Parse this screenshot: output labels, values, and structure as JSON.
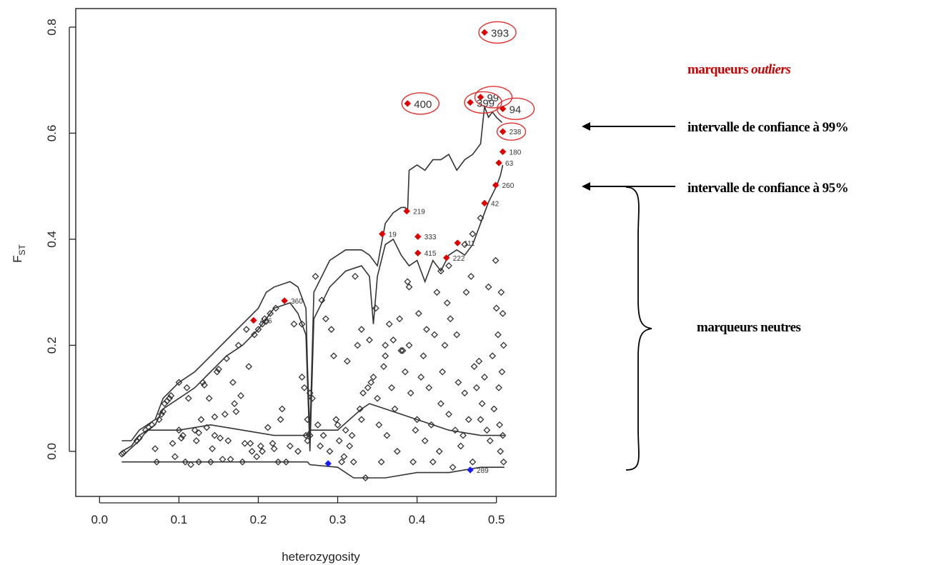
{
  "chart_data": {
    "type": "scatter",
    "title": "",
    "xlabel": "heterozygosity",
    "ylabel_main": "F",
    "ylabel_sub": "ST",
    "xlim": [
      -0.03,
      0.575
    ],
    "ylim": [
      -0.085,
      0.835
    ],
    "xticks": [
      0.0,
      0.1,
      0.2,
      0.3,
      0.4,
      0.5
    ],
    "xtick_labels": [
      "0.0",
      "0.1",
      "0.2",
      "0.3",
      "0.4",
      "0.5"
    ],
    "yticks": [
      0.0,
      0.2,
      0.4,
      0.6,
      0.8
    ],
    "ytick_labels": [
      "0.0",
      "0.2",
      "0.4",
      "0.6",
      "0.8"
    ],
    "grid": false,
    "colors": {
      "outlier": "#e00000",
      "balancing": "#1a1aff",
      "neutral": "#333333",
      "ellipse": "#e03030",
      "annot_red": "#cc0000",
      "annot_black": "#000000"
    },
    "annotations": {
      "outliers_prefix": "marqueurs ",
      "outliers_em": "outliers",
      "ci99": "intervalle de confiance à 99%",
      "ci95": "intervalle de confiance à 95%",
      "neutral": "marqueurs neutres"
    },
    "outliers": [
      {
        "label": "393",
        "x": 0.485,
        "y": 0.79,
        "big": true,
        "circled": true
      },
      {
        "label": "400",
        "x": 0.388,
        "y": 0.656,
        "big": true,
        "circled": true
      },
      {
        "label": "99",
        "x": 0.48,
        "y": 0.668,
        "big": true,
        "circled": true
      },
      {
        "label": "399",
        "x": 0.467,
        "y": 0.658,
        "big": true,
        "circled": true
      },
      {
        "label": "94",
        "x": 0.508,
        "y": 0.646,
        "big": true,
        "circled": true
      },
      {
        "label": "238",
        "x": 0.508,
        "y": 0.603,
        "big": false,
        "circled": true
      },
      {
        "label": "180",
        "x": 0.508,
        "y": 0.565,
        "big": false,
        "circled": false
      },
      {
        "label": "63",
        "x": 0.503,
        "y": 0.544,
        "big": false,
        "circled": false
      },
      {
        "label": "260",
        "x": 0.499,
        "y": 0.502,
        "big": false,
        "circled": false
      },
      {
        "label": "42",
        "x": 0.485,
        "y": 0.468,
        "big": false,
        "circled": false
      },
      {
        "label": "219",
        "x": 0.387,
        "y": 0.453,
        "big": false,
        "circled": false
      },
      {
        "label": "19",
        "x": 0.356,
        "y": 0.41,
        "big": false,
        "circled": false
      },
      {
        "label": "333",
        "x": 0.401,
        "y": 0.405,
        "big": false,
        "circled": false
      },
      {
        "label": "415",
        "x": 0.401,
        "y": 0.374,
        "big": false,
        "circled": false
      },
      {
        "label": "111",
        "x": 0.451,
        "y": 0.393,
        "big": false,
        "circled": false
      },
      {
        "label": "222",
        "x": 0.437,
        "y": 0.365,
        "big": false,
        "circled": false
      },
      {
        "label": "360",
        "x": 0.233,
        "y": 0.284,
        "big": false,
        "circled": false
      },
      {
        "label": "406",
        "x": 0.194,
        "y": 0.247,
        "big": false,
        "circled": false
      }
    ],
    "balancing": [
      {
        "label": "",
        "x": 0.288,
        "y": -0.023
      },
      {
        "label": "289",
        "x": 0.467,
        "y": -0.035
      }
    ],
    "neutral": [
      [
        0.028,
        -0.005
      ],
      [
        0.03,
        -0.003
      ],
      [
        0.047,
        0.02
      ],
      [
        0.05,
        0.025
      ],
      [
        0.058,
        0.04
      ],
      [
        0.062,
        0.045
      ],
      [
        0.066,
        0.05
      ],
      [
        0.07,
        0.005
      ],
      [
        0.072,
        -0.02
      ],
      [
        0.075,
        0.06
      ],
      [
        0.078,
        0.07
      ],
      [
        0.08,
        0.075
      ],
      [
        0.082,
        0.09
      ],
      [
        0.085,
        0.095
      ],
      [
        0.088,
        0.1
      ],
      [
        0.09,
        0.105
      ],
      [
        0.092,
        0.015
      ],
      [
        0.095,
        -0.01
      ],
      [
        0.1,
        0.13
      ],
      [
        0.103,
        0.025
      ],
      [
        0.105,
        0.03
      ],
      [
        0.108,
        -0.02
      ],
      [
        0.11,
        0.12
      ],
      [
        0.112,
        0.1
      ],
      [
        0.115,
        -0.025
      ],
      [
        0.12,
        0.04
      ],
      [
        0.122,
        0.02
      ],
      [
        0.125,
        -0.02
      ],
      [
        0.128,
        0.06
      ],
      [
        0.13,
        0.13
      ],
      [
        0.132,
        0.125
      ],
      [
        0.135,
        0.045
      ],
      [
        0.138,
        0.1
      ],
      [
        0.14,
        -0.02
      ],
      [
        0.142,
        0.005
      ],
      [
        0.145,
        0.065
      ],
      [
        0.148,
        0.15
      ],
      [
        0.15,
        0.155
      ],
      [
        0.152,
        0.025
      ],
      [
        0.155,
        -0.015
      ],
      [
        0.158,
        0.07
      ],
      [
        0.16,
        0.175
      ],
      [
        0.162,
        0.02
      ],
      [
        0.165,
        -0.015
      ],
      [
        0.168,
        0.13
      ],
      [
        0.17,
        0.09
      ],
      [
        0.172,
        0.075
      ],
      [
        0.175,
        0.2
      ],
      [
        0.178,
        0.105
      ],
      [
        0.18,
        -0.02
      ],
      [
        0.183,
        0.015
      ],
      [
        0.185,
        0.23
      ],
      [
        0.188,
        0.16
      ],
      [
        0.19,
        0.015
      ],
      [
        0.192,
        0.0
      ],
      [
        0.195,
        0.22
      ],
      [
        0.198,
        -0.01
      ],
      [
        0.2,
        0.23
      ],
      [
        0.203,
        0.01
      ],
      [
        0.205,
        0.24
      ],
      [
        0.208,
        0.25
      ],
      [
        0.21,
        0.245
      ],
      [
        0.212,
        0.045
      ],
      [
        0.215,
        0.26
      ],
      [
        0.218,
        0.015
      ],
      [
        0.22,
        0.005
      ],
      [
        0.222,
        0.27
      ],
      [
        0.225,
        -0.02
      ],
      [
        0.228,
        0.06
      ],
      [
        0.23,
        0.08
      ],
      [
        0.235,
        -0.02
      ],
      [
        0.24,
        0.01
      ],
      [
        0.245,
        0.24
      ],
      [
        0.25,
        0.0
      ],
      [
        0.255,
        0.14
      ],
      [
        0.258,
        0.12
      ],
      [
        0.26,
        0.03
      ],
      [
        0.262,
        0.02
      ],
      [
        0.265,
        0.03
      ],
      [
        0.268,
        0.1
      ],
      [
        0.272,
        0.33
      ],
      [
        0.275,
        0.05
      ],
      [
        0.278,
        0.01
      ],
      [
        0.28,
        0.285
      ],
      [
        0.282,
        0.03
      ],
      [
        0.285,
        0.25
      ],
      [
        0.29,
        0.0
      ],
      [
        0.292,
        0.23
      ],
      [
        0.295,
        0.18
      ],
      [
        0.298,
        0.06
      ],
      [
        0.3,
        0.05
      ],
      [
        0.302,
        0.02
      ],
      [
        0.305,
        -0.02
      ],
      [
        0.308,
        -0.01
      ],
      [
        0.31,
        0.04
      ],
      [
        0.312,
        0.17
      ],
      [
        0.315,
        0.01
      ],
      [
        0.318,
        0.03
      ],
      [
        0.32,
        -0.02
      ],
      [
        0.322,
        0.33
      ],
      [
        0.325,
        0.2
      ],
      [
        0.328,
        0.08
      ],
      [
        0.33,
        0.06
      ],
      [
        0.332,
        0.11
      ],
      [
        0.335,
        -0.05
      ],
      [
        0.338,
        0.12
      ],
      [
        0.34,
        0.21
      ],
      [
        0.342,
        0.13
      ],
      [
        0.345,
        0.14
      ],
      [
        0.348,
        0.27
      ],
      [
        0.35,
        0.1
      ],
      [
        0.352,
        0.05
      ],
      [
        0.355,
        -0.02
      ],
      [
        0.358,
        0.16
      ],
      [
        0.36,
        0.18
      ],
      [
        0.362,
        0.03
      ],
      [
        0.365,
        0.24
      ],
      [
        0.368,
        0.12
      ],
      [
        0.37,
        0.21
      ],
      [
        0.372,
        0.08
      ],
      [
        0.375,
        0.0
      ],
      [
        0.378,
        0.25
      ],
      [
        0.38,
        0.19
      ],
      [
        0.382,
        0.19
      ],
      [
        0.385,
        0.15
      ],
      [
        0.388,
        0.32
      ],
      [
        0.39,
        0.2
      ],
      [
        0.392,
        0.11
      ],
      [
        0.395,
        -0.02
      ],
      [
        0.398,
        0.04
      ],
      [
        0.4,
        0.06
      ],
      [
        0.402,
        0.26
      ],
      [
        0.405,
        0.14
      ],
      [
        0.408,
        0.18
      ],
      [
        0.41,
        0.02
      ],
      [
        0.412,
        0.23
      ],
      [
        0.415,
        0.12
      ],
      [
        0.418,
        0.05
      ],
      [
        0.42,
        -0.02
      ],
      [
        0.422,
        0.22
      ],
      [
        0.425,
        0.3
      ],
      [
        0.428,
        0.0
      ],
      [
        0.43,
        0.09
      ],
      [
        0.432,
        0.15
      ],
      [
        0.435,
        0.2
      ],
      [
        0.438,
        0.28
      ],
      [
        0.44,
        0.07
      ],
      [
        0.442,
        0.25
      ],
      [
        0.445,
        -0.03
      ],
      [
        0.448,
        0.04
      ],
      [
        0.45,
        0.22
      ],
      [
        0.452,
        0.13
      ],
      [
        0.455,
        0.01
      ],
      [
        0.458,
        0.03
      ],
      [
        0.46,
        0.11
      ],
      [
        0.462,
        0.3
      ],
      [
        0.465,
        0.06
      ],
      [
        0.468,
        0.33
      ],
      [
        0.47,
        -0.02
      ],
      [
        0.472,
        0.16
      ],
      [
        0.475,
        0.12
      ],
      [
        0.478,
        0.17
      ],
      [
        0.48,
        0.06
      ],
      [
        0.482,
        0.09
      ],
      [
        0.485,
        0.14
      ],
      [
        0.488,
        0.04
      ],
      [
        0.49,
        0.31
      ],
      [
        0.492,
        0.02
      ],
      [
        0.495,
        0.18
      ],
      [
        0.497,
        0.08
      ],
      [
        0.499,
        0.36
      ],
      [
        0.5,
        0.27
      ],
      [
        0.502,
        0.22
      ],
      [
        0.503,
        0.12
      ],
      [
        0.504,
        0.05
      ],
      [
        0.505,
        0.0
      ],
      [
        0.506,
        0.3
      ],
      [
        0.507,
        0.15
      ],
      [
        0.508,
        0.26
      ],
      [
        0.508,
        0.03
      ],
      [
        0.509,
        0.2
      ],
      [
        0.509,
        -0.02
      ],
      [
        0.48,
        0.44
      ],
      [
        0.47,
        0.41
      ],
      [
        0.46,
        0.39
      ],
      [
        0.44,
        0.35
      ],
      [
        0.43,
        0.34
      ],
      [
        0.39,
        0.31
      ],
      [
        0.36,
        0.2
      ],
      [
        0.33,
        0.23
      ],
      [
        0.265,
        0.11
      ],
      [
        0.262,
        0.06
      ],
      [
        0.255,
        0.24
      ],
      [
        0.205,
        0.0
      ],
      [
        0.145,
        0.03
      ],
      [
        0.125,
        0.035
      ],
      [
        0.1,
        0.04
      ]
    ],
    "ci99_upper": [
      [
        0.028,
        0.02
      ],
      [
        0.04,
        0.02
      ],
      [
        0.05,
        0.04
      ],
      [
        0.07,
        0.06
      ],
      [
        0.08,
        0.1
      ],
      [
        0.1,
        0.13
      ],
      [
        0.12,
        0.15
      ],
      [
        0.14,
        0.18
      ],
      [
        0.16,
        0.21
      ],
      [
        0.18,
        0.24
      ],
      [
        0.2,
        0.27
      ],
      [
        0.21,
        0.3
      ],
      [
        0.22,
        0.31
      ],
      [
        0.24,
        0.32
      ],
      [
        0.25,
        0.31
      ],
      [
        0.26,
        0.27
      ],
      [
        0.262,
        0.16
      ],
      [
        0.265,
        0.03
      ],
      [
        0.27,
        0.3
      ],
      [
        0.29,
        0.36
      ],
      [
        0.31,
        0.38
      ],
      [
        0.33,
        0.38
      ],
      [
        0.34,
        0.37
      ],
      [
        0.35,
        0.35
      ],
      [
        0.36,
        0.43
      ],
      [
        0.37,
        0.45
      ],
      [
        0.38,
        0.46
      ],
      [
        0.385,
        0.46
      ],
      [
        0.388,
        0.45
      ],
      [
        0.39,
        0.53
      ],
      [
        0.4,
        0.54
      ],
      [
        0.41,
        0.53
      ],
      [
        0.42,
        0.55
      ],
      [
        0.43,
        0.55
      ],
      [
        0.44,
        0.56
      ],
      [
        0.45,
        0.53
      ],
      [
        0.46,
        0.55
      ],
      [
        0.47,
        0.56
      ],
      [
        0.48,
        0.58
      ],
      [
        0.485,
        0.65
      ],
      [
        0.49,
        0.63
      ],
      [
        0.495,
        0.64
      ],
      [
        0.5,
        0.63
      ],
      [
        0.507,
        0.62
      ]
    ],
    "ci95_upper": [
      [
        0.028,
        0.0
      ],
      [
        0.04,
        0.01
      ],
      [
        0.05,
        0.03
      ],
      [
        0.07,
        0.05
      ],
      [
        0.08,
        0.08
      ],
      [
        0.1,
        0.1
      ],
      [
        0.12,
        0.12
      ],
      [
        0.14,
        0.15
      ],
      [
        0.16,
        0.18
      ],
      [
        0.18,
        0.2
      ],
      [
        0.2,
        0.23
      ],
      [
        0.22,
        0.27
      ],
      [
        0.24,
        0.28
      ],
      [
        0.25,
        0.26
      ],
      [
        0.26,
        0.22
      ],
      [
        0.262,
        0.13
      ],
      [
        0.265,
        0.0
      ],
      [
        0.27,
        0.25
      ],
      [
        0.29,
        0.31
      ],
      [
        0.31,
        0.34
      ],
      [
        0.33,
        0.35
      ],
      [
        0.34,
        0.33
      ],
      [
        0.345,
        0.24
      ],
      [
        0.35,
        0.33
      ],
      [
        0.36,
        0.39
      ],
      [
        0.37,
        0.4
      ],
      [
        0.38,
        0.37
      ],
      [
        0.39,
        0.35
      ],
      [
        0.4,
        0.36
      ],
      [
        0.41,
        0.32
      ],
      [
        0.42,
        0.36
      ],
      [
        0.43,
        0.34
      ],
      [
        0.44,
        0.37
      ],
      [
        0.45,
        0.38
      ],
      [
        0.46,
        0.37
      ],
      [
        0.47,
        0.39
      ],
      [
        0.48,
        0.43
      ],
      [
        0.49,
        0.47
      ],
      [
        0.5,
        0.5
      ],
      [
        0.505,
        0.52
      ],
      [
        0.508,
        0.54
      ]
    ],
    "ci_lower_upperband": [
      [
        0.028,
        -0.01
      ],
      [
        0.05,
        0.02
      ],
      [
        0.06,
        0.04
      ],
      [
        0.1,
        0.04
      ],
      [
        0.14,
        0.05
      ],
      [
        0.18,
        0.04
      ],
      [
        0.22,
        0.03
      ],
      [
        0.26,
        0.03
      ],
      [
        0.265,
        0.04
      ],
      [
        0.3,
        0.04
      ],
      [
        0.33,
        0.08
      ],
      [
        0.34,
        0.09
      ],
      [
        0.36,
        0.08
      ],
      [
        0.4,
        0.06
      ],
      [
        0.44,
        0.04
      ],
      [
        0.48,
        0.03
      ],
      [
        0.51,
        0.03
      ]
    ],
    "ci_lower": [
      [
        0.028,
        -0.02
      ],
      [
        0.1,
        -0.02
      ],
      [
        0.2,
        -0.02
      ],
      [
        0.262,
        -0.02
      ],
      [
        0.265,
        -0.025
      ],
      [
        0.3,
        -0.03
      ],
      [
        0.32,
        -0.05
      ],
      [
        0.36,
        -0.05
      ],
      [
        0.4,
        -0.04
      ],
      [
        0.44,
        -0.04
      ],
      [
        0.48,
        -0.03
      ],
      [
        0.51,
        -0.03
      ]
    ]
  }
}
